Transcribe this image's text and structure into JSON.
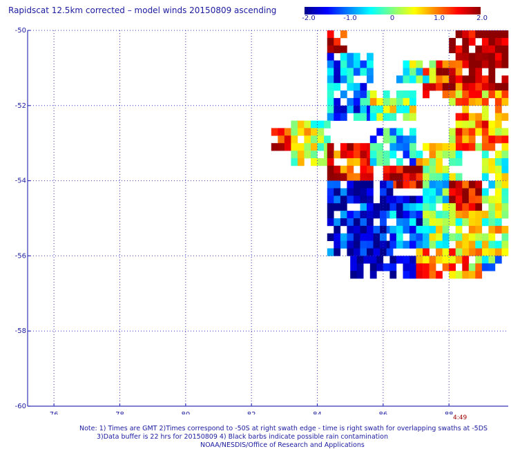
{
  "title": "Rapidscat 12.5km corrected – model winds 20150809 ascending",
  "colorbar": {
    "ticks": [
      "-2.0",
      "-1.0",
      "0",
      "1.0",
      "2.0"
    ],
    "range": [
      -2.0,
      2.0
    ],
    "colors": [
      "#00008c",
      "#0000ff",
      "#0080ff",
      "#00ffff",
      "#80ff80",
      "#ffff00",
      "#ff8000",
      "#ff0000",
      "#8c0000"
    ]
  },
  "time_label": "4:49",
  "notes": {
    "line1": "Note: 1) Times are GMT 2)Times correspond to -50S at right swath edge - time is right swath for overlapping swaths at -5DS",
    "line2": "3)Data buffer is 22 hrs for 20150809 4) Black barbs indicate possible rain contamination",
    "line3": "NOAA/NESDIS/Office of Research and Applications"
  },
  "chart_data": {
    "type": "heatmap",
    "title": "Rapidscat 12.5km corrected – model winds 20150809 ascending",
    "x_ticks": [
      "76",
      "78",
      "80",
      "82",
      "84",
      "86",
      "88"
    ],
    "y_ticks": [
      "-50",
      "-52",
      "-54",
      "-56",
      "-58",
      "-60"
    ],
    "xlim": [
      75.2,
      89.8
    ],
    "ylim": [
      -60,
      -50
    ],
    "grid": true,
    "value_range": [
      -2.0,
      2.0
    ],
    "cell_size_deg": 0.2,
    "regions": [
      {
        "lon": [
          84.3,
          84.9
        ],
        "lat": [
          -50.8,
          -50.0
        ],
        "value": 1.8
      },
      {
        "lon": [
          88.0,
          89.8
        ],
        "lat": [
          -51.6,
          -50.0
        ],
        "value": 2.0
      },
      {
        "lon": [
          87.2,
          88.4
        ],
        "lat": [
          -51.8,
          -50.8
        ],
        "value": 1.6
      },
      {
        "lon": [
          86.4,
          87.6
        ],
        "lat": [
          -51.4,
          -50.8
        ],
        "value": -0.2
      },
      {
        "lon": [
          84.3,
          85.6
        ],
        "lat": [
          -52.4,
          -50.6
        ],
        "value": -1.0
      },
      {
        "lon": [
          85.6,
          87.0
        ],
        "lat": [
          -52.4,
          -51.6
        ],
        "value": 0.2
      },
      {
        "lon": [
          88.0,
          89.8
        ],
        "lat": [
          -53.2,
          -51.6
        ],
        "value": 0.9
      },
      {
        "lon": [
          82.6,
          83.2
        ],
        "lat": [
          -53.2,
          -52.6
        ],
        "value": 1.8
      },
      {
        "lon": [
          83.2,
          84.3
        ],
        "lat": [
          -53.6,
          -52.4
        ],
        "value": 0.3
      },
      {
        "lon": [
          84.3,
          85.6
        ],
        "lat": [
          -54.0,
          -53.0
        ],
        "value": 1.5
      },
      {
        "lon": [
          85.6,
          87.0
        ],
        "lat": [
          -53.6,
          -52.6
        ],
        "value": -0.7
      },
      {
        "lon": [
          87.0,
          88.4
        ],
        "lat": [
          -54.0,
          -53.0
        ],
        "value": 0.3
      },
      {
        "lon": [
          86.0,
          87.2
        ],
        "lat": [
          -54.2,
          -53.6
        ],
        "value": 1.9
      },
      {
        "lon": [
          87.2,
          88.0
        ],
        "lat": [
          -54.6,
          -53.8
        ],
        "value": -0.5
      },
      {
        "lon": [
          88.0,
          89.0
        ],
        "lat": [
          -54.8,
          -54.0
        ],
        "value": 1.8
      },
      {
        "lon": [
          89.0,
          89.8
        ],
        "lat": [
          -55.0,
          -53.2
        ],
        "value": 0.0
      },
      {
        "lon": [
          84.3,
          86.2
        ],
        "lat": [
          -56.0,
          -54.0
        ],
        "value": -1.6
      },
      {
        "lon": [
          86.2,
          87.2
        ],
        "lat": [
          -55.8,
          -54.4
        ],
        "value": -1.2
      },
      {
        "lon": [
          87.2,
          88.2
        ],
        "lat": [
          -55.8,
          -54.6
        ],
        "value": 0.0
      },
      {
        "lon": [
          88.2,
          89.8
        ],
        "lat": [
          -56.0,
          -54.8
        ],
        "value": 0.3
      },
      {
        "lon": [
          85.0,
          87.0
        ],
        "lat": [
          -56.6,
          -56.0
        ],
        "value": -1.7
      },
      {
        "lon": [
          87.0,
          89.0
        ],
        "lat": [
          -56.6,
          -55.8
        ],
        "value": 0.8
      },
      {
        "lon": [
          89.0,
          89.8
        ],
        "lat": [
          -56.4,
          -56.0
        ],
        "value": -0.6
      }
    ]
  }
}
